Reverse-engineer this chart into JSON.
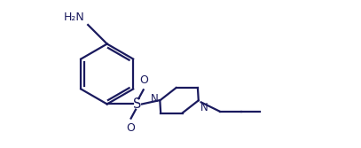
{
  "bg_color": "#ffffff",
  "bond_color": "#1a1a5e",
  "atom_color": "#1a1a5e",
  "line_width": 1.6,
  "font_size": 8.5,
  "figsize": [
    4.07,
    1.67
  ],
  "dpi": 100,
  "xlim": [
    0,
    9
  ],
  "ylim": [
    0,
    4
  ]
}
